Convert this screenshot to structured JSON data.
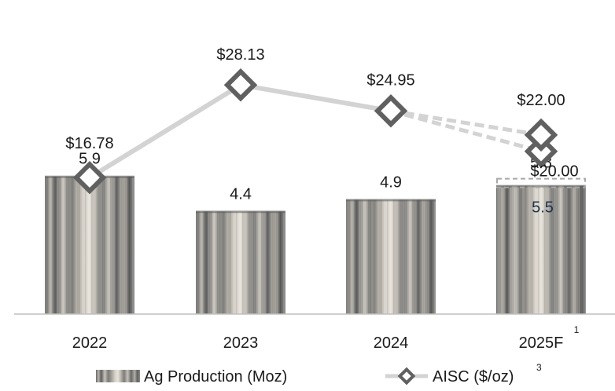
{
  "chart_data": {
    "type": "bar",
    "categories": [
      "2022",
      "2023",
      "2024",
      "2025F"
    ],
    "category_superscripts": [
      "",
      "",
      "",
      "1"
    ],
    "series": [
      {
        "name": "Ag Production (Moz)",
        "type": "bar",
        "values": [
          5.9,
          4.4,
          4.9,
          5.5
        ],
        "value_labels": [
          "5.9",
          "4.4",
          "4.9",
          "5.5"
        ],
        "forecast_high": 5.8,
        "forecast_high_label": "5.8"
      },
      {
        "name": "AISC ($/oz)",
        "name_superscript": "3",
        "type": "line",
        "values": [
          16.78,
          28.13,
          24.95,
          22.0
        ],
        "value_labels": [
          "$16.78",
          "$28.13",
          "$24.95",
          "$22.00"
        ],
        "forecast_low": 20.0,
        "forecast_low_label": "$20.00"
      }
    ],
    "bar_axis_range": [
      0,
      10.5
    ],
    "line_axis_range": [
      0,
      33
    ],
    "grid": false,
    "legend_position": "bottom",
    "colors": {
      "bar_dark": "#6f6f6f",
      "bar_light": "#d8d4cc",
      "line": "#d3d3d3",
      "marker": "#606060",
      "forecast_box": "#a8a8a8",
      "axis": "#bfbfbf"
    }
  }
}
